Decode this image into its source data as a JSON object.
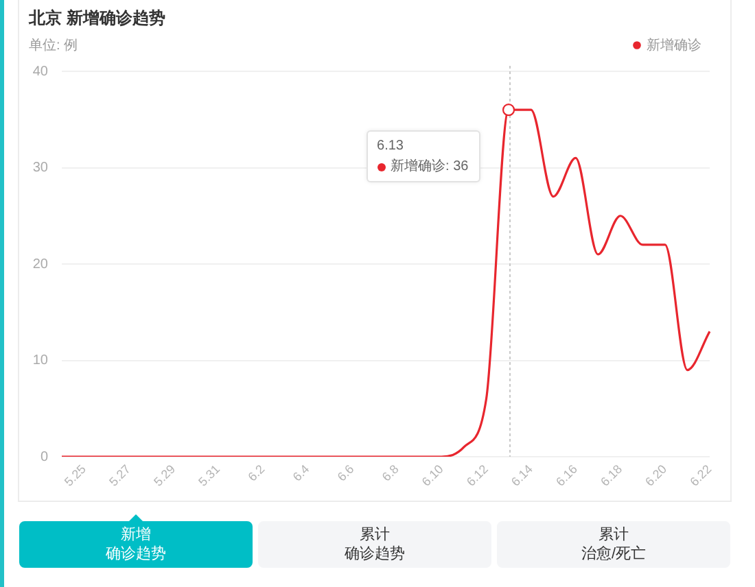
{
  "chart_data": {
    "type": "line",
    "title": "北京 新增确诊趋势",
    "ylabel": "单位: 例",
    "categories": [
      null,
      "5.25",
      null,
      "5.27",
      null,
      "5.29",
      null,
      "5.31",
      null,
      "6.2",
      null,
      "6.4",
      null,
      "6.6",
      null,
      "6.8",
      null,
      "6.10",
      null,
      "6.12",
      null,
      "6.14",
      null,
      "6.16",
      null,
      "6.18",
      null,
      "6.20",
      null,
      "6.22"
    ],
    "series": [
      {
        "name": "新增确诊",
        "color": "#e8262e",
        "values": [
          0,
          0,
          0,
          0,
          0,
          0,
          0,
          0,
          0,
          0,
          0,
          0,
          0,
          0,
          0,
          0,
          0,
          0,
          1,
          6,
          36,
          36,
          27,
          31,
          21,
          25,
          22,
          22,
          9,
          13
        ]
      }
    ],
    "ylim": [
      0,
      40
    ],
    "yticks": [
      0,
      10,
      20,
      30,
      40
    ],
    "grid": "y",
    "legend": "top right",
    "annotations": [
      "6.13",
      "新增确诊: 36",
      "新增",
      "确诊趋势",
      "累计",
      "确诊趋势",
      "累计",
      "治愈/死亡"
    ]
  }
}
